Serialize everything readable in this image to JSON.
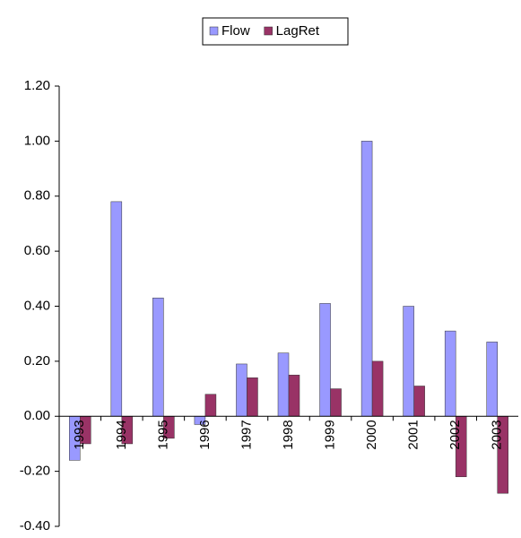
{
  "chart_data": {
    "type": "bar",
    "categories": [
      "1993",
      "1994",
      "1995",
      "1996",
      "1997",
      "1998",
      "1999",
      "2000",
      "2001",
      "2002",
      "2003"
    ],
    "series": [
      {
        "name": "Flow",
        "color": "#9999ff",
        "values": [
          -0.16,
          0.78,
          0.43,
          -0.03,
          0.19,
          0.23,
          0.41,
          1.0,
          0.4,
          0.31,
          0.27
        ]
      },
      {
        "name": "LagRet",
        "color": "#993366",
        "values": [
          -0.1,
          -0.1,
          -0.08,
          0.08,
          0.14,
          0.15,
          0.1,
          0.2,
          0.11,
          -0.22,
          -0.28
        ]
      }
    ],
    "ylim": [
      -0.4,
      1.2
    ],
    "yticks": [
      {
        "value": -0.4,
        "label": "-0.40"
      },
      {
        "value": -0.2,
        "label": "-0.20"
      },
      {
        "value": 0,
        "label": "0.00"
      },
      {
        "value": 0.2,
        "label": "0.20"
      },
      {
        "value": 0.4,
        "label": "0.40"
      },
      {
        "value": 0.6,
        "label": "0.60"
      },
      {
        "value": 0.8,
        "label": "0.80"
      },
      {
        "value": 1.0,
        "label": "1.00"
      },
      {
        "value": 1.2,
        "label": "1.20"
      }
    ],
    "grid": false,
    "legend": "top"
  }
}
